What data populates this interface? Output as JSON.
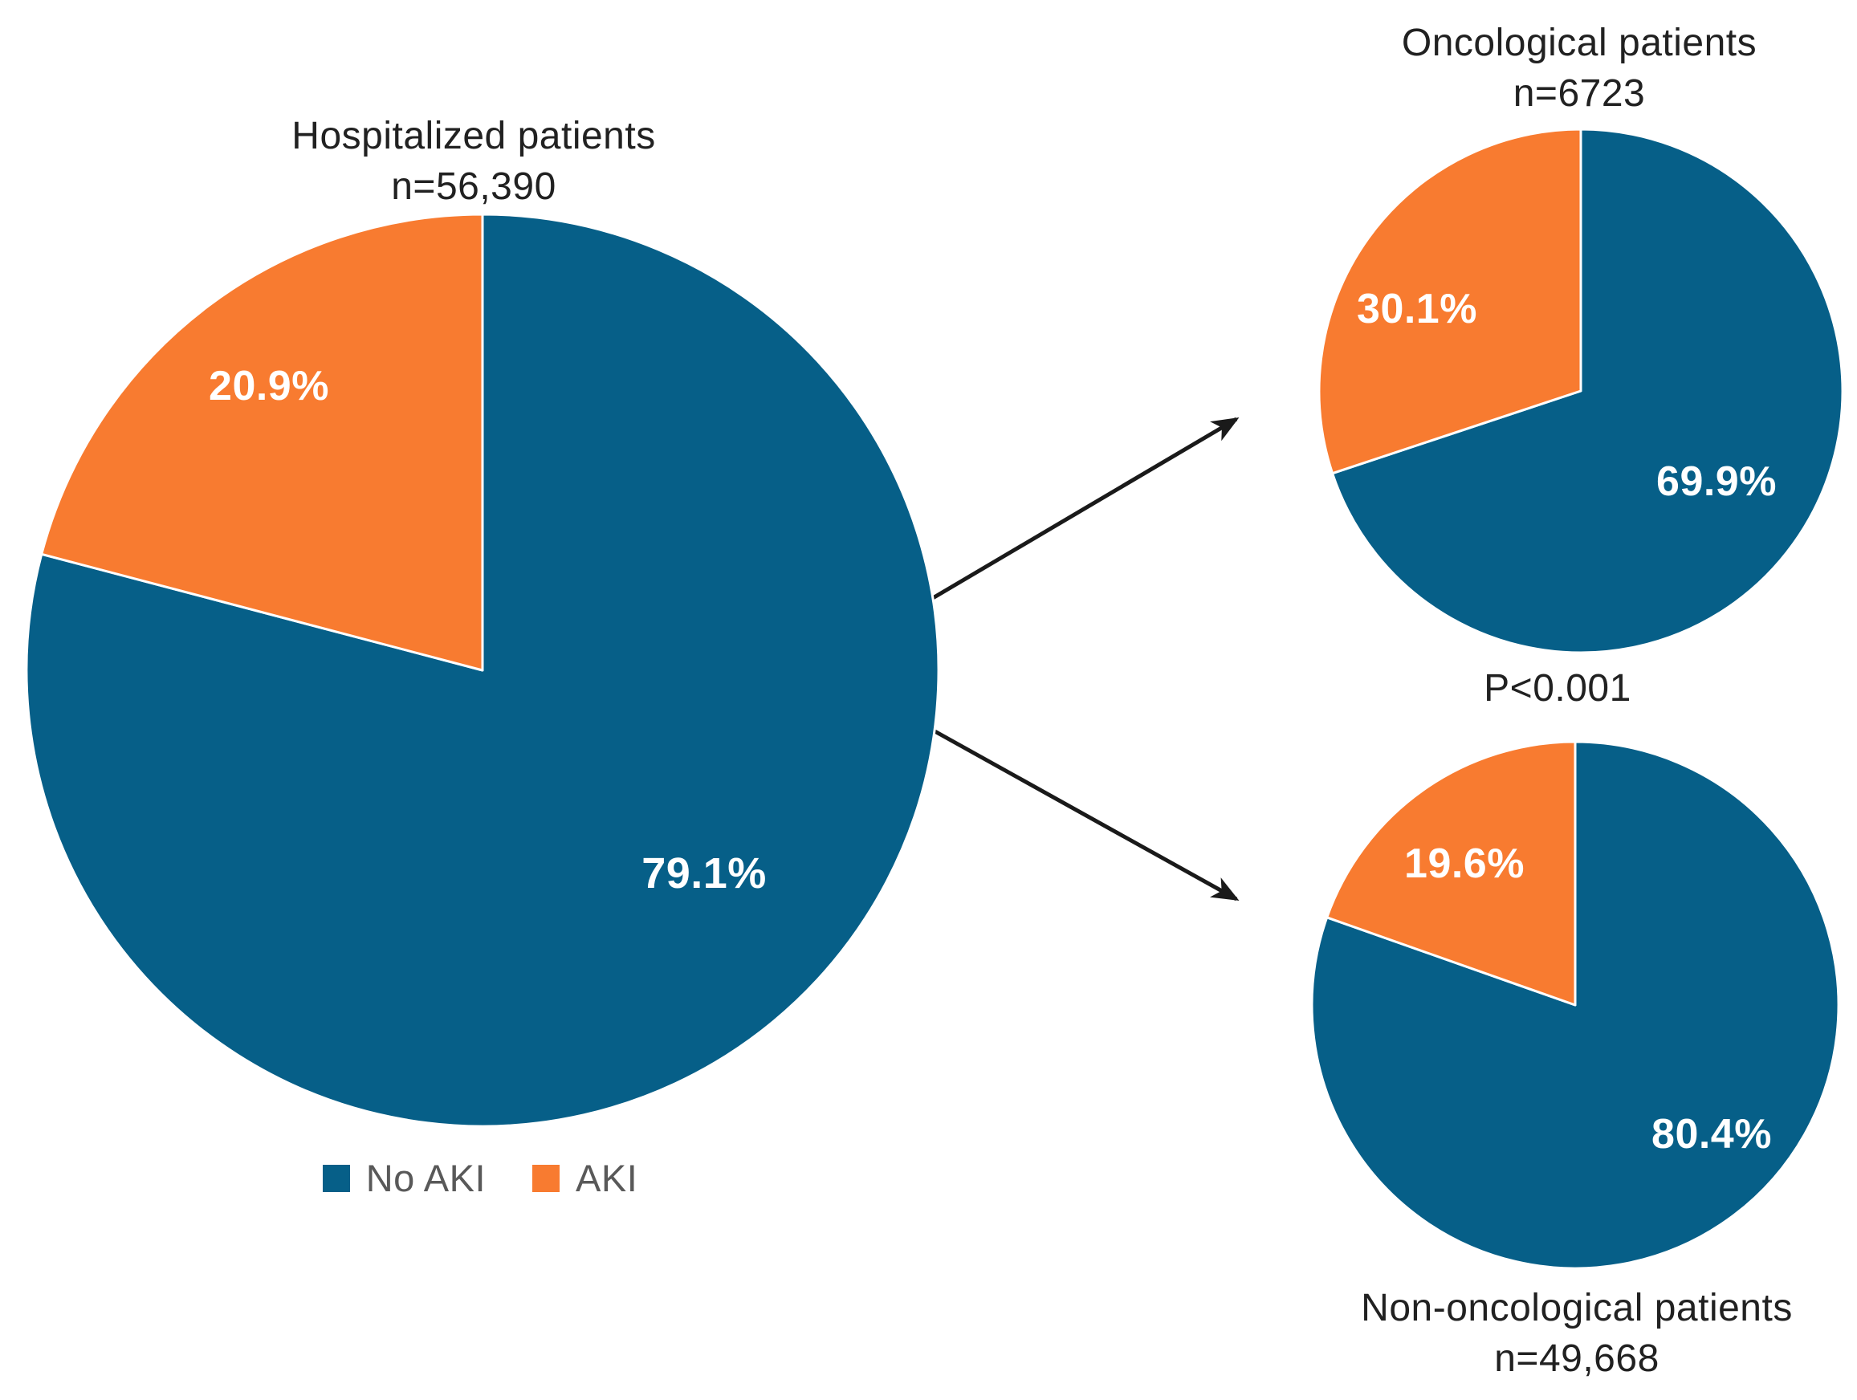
{
  "figure": {
    "legend": {
      "items": [
        {
          "label": "No AKI",
          "color": "#065F88"
        },
        {
          "label": "AKI",
          "color": "#F87B30"
        }
      ]
    },
    "p_value": "P<0.001"
  },
  "chart_data": [
    {
      "type": "pie",
      "name": "hospitalized",
      "title": "Hospitalized patients",
      "n": "n=56,390",
      "categories": [
        "No AKI",
        "AKI"
      ],
      "values": [
        79.1,
        20.9
      ],
      "labels": [
        "79.1%",
        "20.9%"
      ],
      "colors": [
        "#065F88",
        "#F87B30"
      ],
      "start_angle_deg": 0,
      "direction": "clockwise",
      "label_color": "#ffffff"
    },
    {
      "type": "pie",
      "name": "oncological",
      "title": "Oncological patients",
      "n": "n=6723",
      "categories": [
        "No AKI",
        "AKI"
      ],
      "values": [
        69.9,
        30.1
      ],
      "labels": [
        "69.9%",
        "30.1%"
      ],
      "colors": [
        "#065F88",
        "#F87B30"
      ],
      "start_angle_deg": 0,
      "direction": "clockwise",
      "label_color": "#ffffff"
    },
    {
      "type": "pie",
      "name": "non_oncological",
      "title": "Non-oncological patients",
      "n": "n=49,668",
      "categories": [
        "No AKI",
        "AKI"
      ],
      "values": [
        80.4,
        19.6
      ],
      "labels": [
        "80.4%",
        "19.6%"
      ],
      "colors": [
        "#065F88",
        "#F87B30"
      ],
      "start_angle_deg": 0,
      "direction": "clockwise",
      "label_color": "#ffffff"
    }
  ]
}
